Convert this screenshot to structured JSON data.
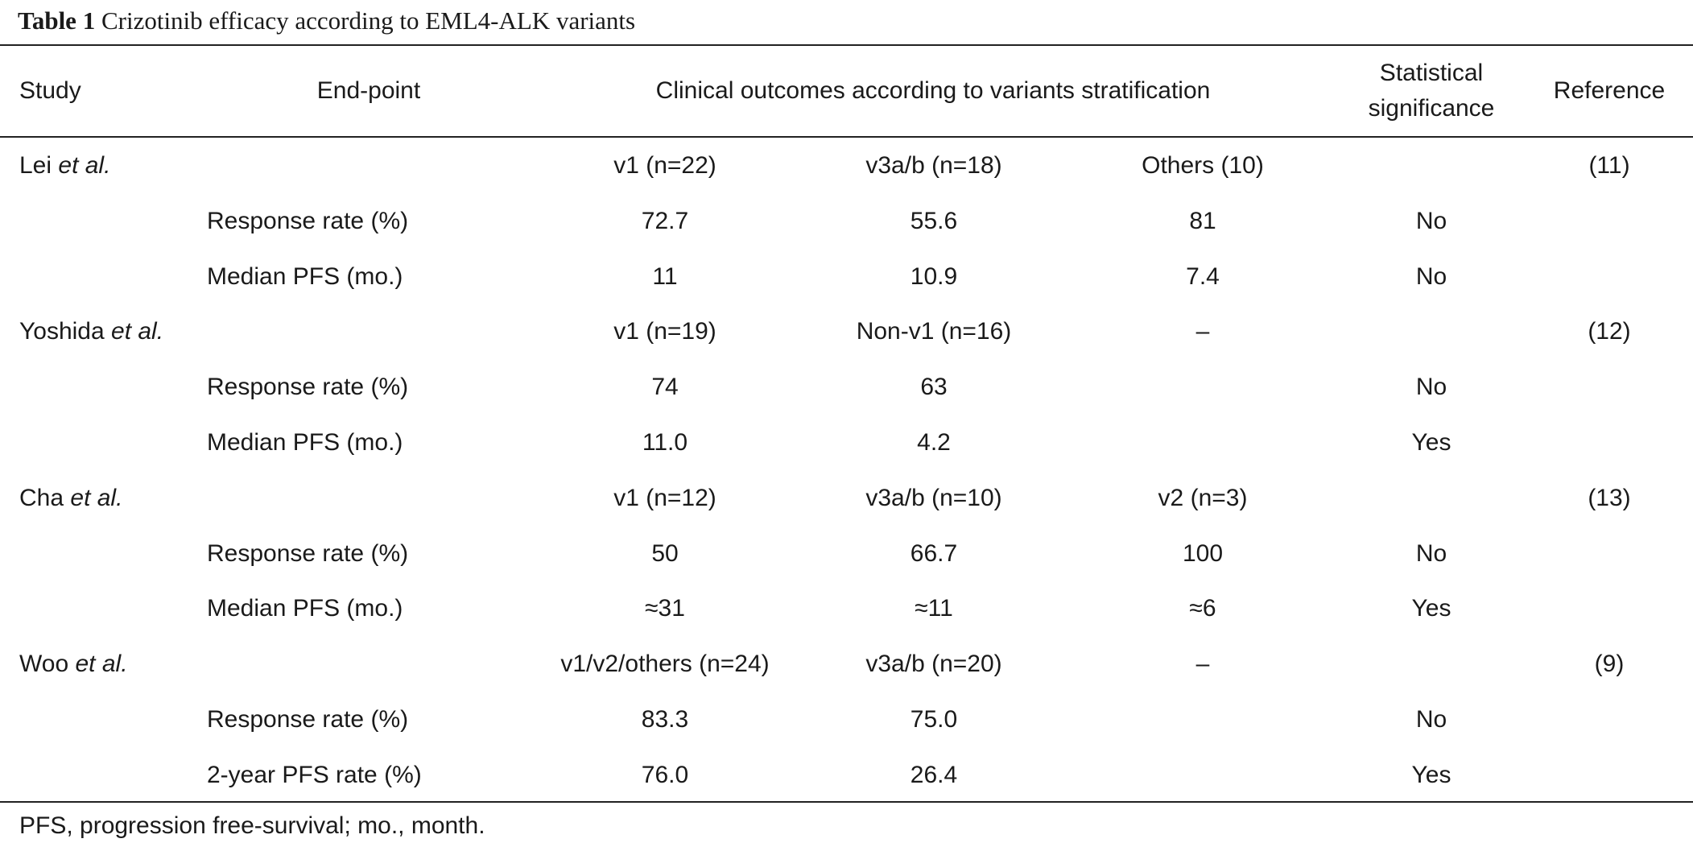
{
  "caption": {
    "label": "Table 1",
    "title": "Crizotinib efficacy according to EML4-ALK variants"
  },
  "headers": {
    "study": "Study",
    "endpoint": "End-point",
    "outcomes": "Clinical outcomes according to variants stratification",
    "significance_line1": "Statistical",
    "significance_line2": "significance",
    "reference": "Reference"
  },
  "rows": [
    {
      "study_name": "Lei",
      "study_suffix": "et al.",
      "endpoint": "",
      "v1": "v1 (n=22)",
      "v2": "v3a/b (n=18)",
      "v3": "Others (10)",
      "sig": "",
      "ref": "(11)"
    },
    {
      "study_name": "",
      "study_suffix": "",
      "endpoint": "Response rate (%)",
      "v1": "72.7",
      "v2": "55.6",
      "v3": "81",
      "sig": "No",
      "ref": ""
    },
    {
      "study_name": "",
      "study_suffix": "",
      "endpoint": "Median PFS (mo.)",
      "v1": "11",
      "v2": "10.9",
      "v3": "7.4",
      "sig": "No",
      "ref": ""
    },
    {
      "study_name": "Yoshida",
      "study_suffix": "et al.",
      "endpoint": "",
      "v1": "v1 (n=19)",
      "v2": "Non-v1 (n=16)",
      "v3": "–",
      "sig": "",
      "ref": "(12)"
    },
    {
      "study_name": "",
      "study_suffix": "",
      "endpoint": "Response rate (%)",
      "v1": "74",
      "v2": "63",
      "v3": "",
      "sig": "No",
      "ref": ""
    },
    {
      "study_name": "",
      "study_suffix": "",
      "endpoint": "Median PFS (mo.)",
      "v1": "11.0",
      "v2": "4.2",
      "v3": "",
      "sig": "Yes",
      "ref": ""
    },
    {
      "study_name": "Cha",
      "study_suffix": "et al.",
      "endpoint": "",
      "v1": "v1 (n=12)",
      "v2": "v3a/b (n=10)",
      "v3": "v2 (n=3)",
      "sig": "",
      "ref": "(13)"
    },
    {
      "study_name": "",
      "study_suffix": "",
      "endpoint": "Response rate (%)",
      "v1": "50",
      "v2": "66.7",
      "v3": "100",
      "sig": "No",
      "ref": ""
    },
    {
      "study_name": "",
      "study_suffix": "",
      "endpoint": "Median PFS (mo.)",
      "v1": "≈31",
      "v2": "≈11",
      "v3": "≈6",
      "sig": "Yes",
      "ref": ""
    },
    {
      "study_name": "Woo",
      "study_suffix": "et al.",
      "endpoint": "",
      "v1": "v1/v2/others (n=24)",
      "v2": "v3a/b (n=20)",
      "v3": "–",
      "sig": "",
      "ref": "(9)"
    },
    {
      "study_name": "",
      "study_suffix": "",
      "endpoint": "Response rate (%)",
      "v1": "83.3",
      "v2": "75.0",
      "v3": "",
      "sig": "No",
      "ref": ""
    },
    {
      "study_name": "",
      "study_suffix": "",
      "endpoint": "2-year PFS rate (%)",
      "v1": "76.0",
      "v2": "26.4",
      "v3": "",
      "sig": "Yes",
      "ref": ""
    }
  ],
  "footnote": "PFS, progression free-survival; mo., month."
}
